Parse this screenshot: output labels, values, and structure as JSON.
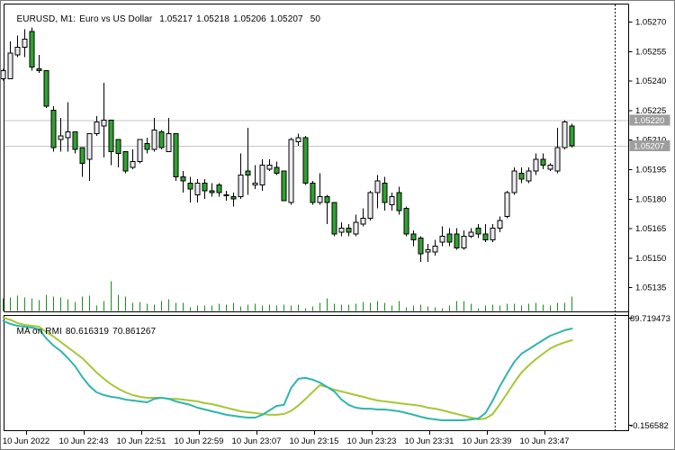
{
  "window": {
    "background": "#FFFFFF",
    "border_color": "#7A7A7A"
  },
  "header": {
    "symbol_period": "EURUSD, M1:",
    "description": "Euro vs US Dollar",
    "open": "1.05217",
    "high": "1.05218",
    "low": "1.05206",
    "close": "1.05207",
    "volume": "50"
  },
  "indicator_label": {
    "name": "MA on RMI",
    "value_fast": "80.616319",
    "value_slow": "70.861267"
  },
  "chart_data": {
    "type": "candlestick",
    "title": "EURUSD, M1: Euro vs US Dollar",
    "symbol": "EURUSD",
    "timeframe": "M1",
    "price_axis_ticks": [
      1.0527,
      1.05255,
      1.0524,
      1.05225,
      1.0521,
      1.05195,
      1.0518,
      1.05165,
      1.0515,
      1.05135
    ],
    "ask_line_price": 1.0522,
    "bid_line_price": 1.05207,
    "x_axis_labels": [
      "10 Jun 2022",
      "10 Jun 22:43",
      "10 Jun 22:51",
      "10 Jun 22:59",
      "10 Jun 23:07",
      "10 Jun 23:15",
      "10 Jun 23:23",
      "10 Jun 23:31",
      "10 Jun 23:39",
      "10 Jun 23:47"
    ],
    "candles_ohlc": [
      [
        1.05241,
        1.05246,
        1.0524,
        1.05245
      ],
      [
        1.05241,
        1.0526,
        1.05241,
        1.05254
      ],
      [
        1.05253,
        1.05263,
        1.05252,
        1.05257
      ],
      [
        1.05257,
        1.05266,
        1.05252,
        1.05261
      ],
      [
        1.05265,
        1.05267,
        1.05245,
        1.05247
      ],
      [
        1.05246,
        1.05253,
        1.05244,
        1.05245
      ],
      [
        1.05245,
        1.05245,
        1.05226,
        1.05227
      ],
      [
        1.05225,
        1.05227,
        1.05204,
        1.05206
      ],
      [
        1.0521,
        1.05221,
        1.05204,
        1.05212
      ],
      [
        1.05211,
        1.05229,
        1.05204,
        1.05214
      ],
      [
        1.05214,
        1.05214,
        1.05203,
        1.05205
      ],
      [
        1.05206,
        1.05206,
        1.05191,
        1.05198
      ],
      [
        1.052,
        1.05213,
        1.05189,
        1.05213
      ],
      [
        1.05213,
        1.05222,
        1.05212,
        1.05219
      ],
      [
        1.05217,
        1.05239,
        1.05201,
        1.0522
      ],
      [
        1.0522,
        1.0522,
        1.05197,
        1.05204
      ],
      [
        1.0521,
        1.0521,
        1.05196,
        1.05203
      ],
      [
        1.05204,
        1.05204,
        1.05193,
        1.05194
      ],
      [
        1.05196,
        1.05205,
        1.05195,
        1.05199
      ],
      [
        1.05199,
        1.0521,
        1.05198,
        1.0521
      ],
      [
        1.05208,
        1.05211,
        1.05203,
        1.05205
      ],
      [
        1.05205,
        1.05221,
        1.05204,
        1.05215
      ],
      [
        1.05214,
        1.05215,
        1.05205,
        1.05206
      ],
      [
        1.05204,
        1.05221,
        1.05204,
        1.05213
      ],
      [
        1.05213,
        1.05213,
        1.05189,
        1.05191
      ],
      [
        1.05191,
        1.05194,
        1.05183,
        1.05189
      ],
      [
        1.05188,
        1.05191,
        1.05178,
        1.05185
      ],
      [
        1.05182,
        1.0519,
        1.05178,
        1.05188
      ],
      [
        1.05188,
        1.0519,
        1.0518,
        1.05184
      ],
      [
        1.05184,
        1.05188,
        1.05181,
        1.05183
      ],
      [
        1.05187,
        1.05188,
        1.05181,
        1.05183
      ],
      [
        1.05182,
        1.05184,
        1.05179,
        1.05182
      ],
      [
        1.05181,
        1.05183,
        1.05176,
        1.0518
      ],
      [
        1.05181,
        1.05203,
        1.0518,
        1.05192
      ],
      [
        1.05194,
        1.05216,
        1.05182,
        1.05192
      ],
      [
        1.05187,
        1.05197,
        1.05185,
        1.05188
      ],
      [
        1.05187,
        1.052,
        1.05184,
        1.05197
      ],
      [
        1.05195,
        1.052,
        1.05194,
        1.05197
      ],
      [
        1.05196,
        1.05199,
        1.05192,
        1.05193
      ],
      [
        1.05194,
        1.05194,
        1.05179,
        1.05179
      ],
      [
        1.05178,
        1.05211,
        1.05177,
        1.0521
      ],
      [
        1.05209,
        1.05213,
        1.05207,
        1.05211
      ],
      [
        1.05211,
        1.05212,
        1.05187,
        1.05188
      ],
      [
        1.05188,
        1.05189,
        1.05177,
        1.05178
      ],
      [
        1.05178,
        1.05193,
        1.05177,
        1.05181
      ],
      [
        1.05181,
        1.05182,
        1.05167,
        1.05178
      ],
      [
        1.05178,
        1.05178,
        1.05161,
        1.05162
      ],
      [
        1.05163,
        1.05168,
        1.05161,
        1.05165
      ],
      [
        1.05165,
        1.05167,
        1.05161,
        1.05163
      ],
      [
        1.05162,
        1.05172,
        1.05161,
        1.05168
      ],
      [
        1.05167,
        1.05175,
        1.05166,
        1.0517
      ],
      [
        1.0517,
        1.05184,
        1.05169,
        1.05183
      ],
      [
        1.05183,
        1.05192,
        1.05175,
        1.05189
      ],
      [
        1.05188,
        1.05191,
        1.05174,
        1.05178
      ],
      [
        1.05177,
        1.05183,
        1.05174,
        1.05181
      ],
      [
        1.05183,
        1.05186,
        1.05172,
        1.05174
      ],
      [
        1.05175,
        1.05176,
        1.05161,
        1.05162
      ],
      [
        1.05162,
        1.05164,
        1.05156,
        1.05159
      ],
      [
        1.0516,
        1.05161,
        1.05148,
        1.05152
      ],
      [
        1.05153,
        1.05157,
        1.05148,
        1.05154
      ],
      [
        1.05153,
        1.05159,
        1.05151,
        1.05156
      ],
      [
        1.05158,
        1.05166,
        1.05156,
        1.05161
      ],
      [
        1.05162,
        1.05165,
        1.05156,
        1.05158
      ],
      [
        1.05162,
        1.05165,
        1.05154,
        1.05155
      ],
      [
        1.05155,
        1.05164,
        1.05154,
        1.05161
      ],
      [
        1.05161,
        1.05165,
        1.0516,
        1.05163
      ],
      [
        1.05165,
        1.05167,
        1.0516,
        1.05162
      ],
      [
        1.05162,
        1.05167,
        1.05158,
        1.05159
      ],
      [
        1.05159,
        1.05167,
        1.05158,
        1.05165
      ],
      [
        1.05165,
        1.05171,
        1.05163,
        1.05169
      ],
      [
        1.05171,
        1.05184,
        1.0517,
        1.05183
      ],
      [
        1.05183,
        1.05196,
        1.05182,
        1.05194
      ],
      [
        1.05193,
        1.05196,
        1.05188,
        1.0519
      ],
      [
        1.05189,
        1.05196,
        1.05188,
        1.05194
      ],
      [
        1.05194,
        1.05203,
        1.05192,
        1.052
      ],
      [
        1.052,
        1.05203,
        1.05195,
        1.05197
      ],
      [
        1.05195,
        1.05198,
        1.05194,
        1.05197
      ],
      [
        1.05194,
        1.05216,
        1.05193,
        1.05206
      ],
      [
        1.05206,
        1.0522,
        1.05205,
        1.05219
      ],
      [
        1.05217,
        1.05218,
        1.05206,
        1.05207
      ]
    ],
    "volumes": [
      44,
      47,
      53,
      47,
      44,
      38,
      56,
      50,
      47,
      41,
      31,
      50,
      53,
      19,
      34,
      103,
      56,
      50,
      28,
      31,
      25,
      22,
      34,
      41,
      28,
      28,
      13,
      19,
      19,
      19,
      25,
      22,
      28,
      16,
      22,
      25,
      19,
      22,
      19,
      22,
      19,
      22,
      9,
      16,
      28,
      44,
      25,
      22,
      22,
      25,
      31,
      28,
      34,
      28,
      19,
      34,
      13,
      19,
      22,
      16,
      13,
      9,
      19,
      34,
      34,
      25,
      9,
      19,
      22,
      19,
      25,
      25,
      19,
      25,
      28,
      22,
      19,
      28,
      28,
      50
    ],
    "indicator": {
      "name": "MA on RMI",
      "axis_max": 89.719473,
      "axis_min": -0.156582,
      "current_values": [
        "80.616319",
        "70.861267"
      ],
      "series": [
        {
          "name": "RMI fast",
          "color": "#2FB5AD",
          "values": [
            87.0,
            84.5,
            82.9,
            82.2,
            81.4,
            79.9,
            72.3,
            66.3,
            61.8,
            55.7,
            48.9,
            39.9,
            32.3,
            27.0,
            24.8,
            23.3,
            22.5,
            21.0,
            20.2,
            19.5,
            18.7,
            21.7,
            22.5,
            21.7,
            19.5,
            18.0,
            16.5,
            14.2,
            12.7,
            11.2,
            9.7,
            8.2,
            7.4,
            6.6,
            5.9,
            5.9,
            8.2,
            12.0,
            15.7,
            16.5,
            30.8,
            38.4,
            39.2,
            37.7,
            35.3,
            31.6,
            27.8,
            21.0,
            16.5,
            14.2,
            13.4,
            13.4,
            12.7,
            12.7,
            11.9,
            11.2,
            9.7,
            8.2,
            6.6,
            5.1,
            4.4,
            3.6,
            3.6,
            3.6,
            3.6,
            4.4,
            5.1,
            9.7,
            20.2,
            32.3,
            42.9,
            52.7,
            59.5,
            63.3,
            67.1,
            70.9,
            74.6,
            76.9,
            79.2,
            80.616319
          ]
        },
        {
          "name": "MA slow",
          "color": "#A6C735",
          "values": [
            89.719473,
            88.0,
            85.2,
            83.7,
            82.9,
            82.2,
            77.6,
            73.9,
            69.3,
            64.8,
            60.3,
            55.7,
            49.7,
            43.6,
            38.4,
            33.8,
            30.1,
            27.0,
            24.8,
            23.3,
            22.5,
            22.5,
            22.5,
            21.7,
            21.7,
            21.0,
            20.2,
            19.5,
            18.0,
            17.2,
            15.7,
            14.2,
            12.7,
            11.2,
            10.4,
            9.7,
            8.9,
            8.2,
            8.2,
            8.9,
            11.5,
            16.0,
            21.5,
            27.5,
            33.1,
            31.6,
            29.3,
            27.8,
            26.3,
            24.8,
            23.3,
            21.7,
            20.2,
            19.5,
            18.7,
            18.0,
            17.2,
            16.5,
            15.7,
            14.2,
            13.4,
            12.0,
            10.4,
            8.9,
            7.4,
            5.9,
            4.4,
            5.1,
            8.9,
            17.2,
            26.3,
            35.4,
            43.7,
            49.7,
            55.0,
            59.5,
            64.0,
            66.8,
            69.0,
            70.861267
          ]
        }
      ]
    },
    "colors": {
      "bull_fill": "#EBEBF2",
      "bear_fill": "#30A330",
      "candle_outline": "#000000",
      "volume": "#1E8C1E",
      "grid_line": "#C6C6C6",
      "frame": "#000000",
      "price_label_highlight_bg": "#9E9E9E",
      "price_label_highlight_text": "#FFFFFF",
      "axis_text": "#000000"
    }
  }
}
